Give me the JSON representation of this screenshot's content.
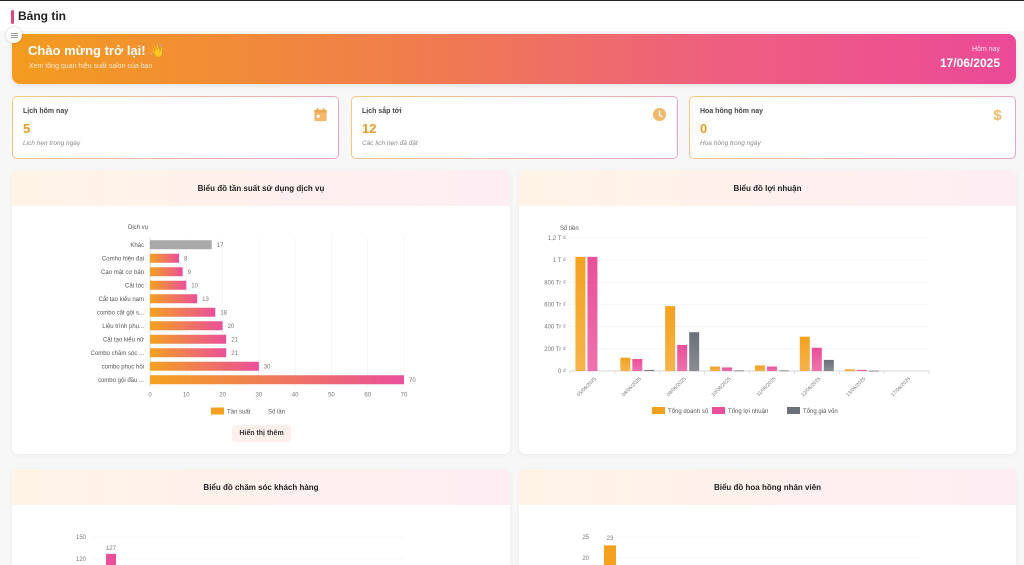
{
  "header": {
    "title": "Bảng tin",
    "menu_icon": "list-icon"
  },
  "hero": {
    "welcome": "Chào mừng trở lại! 👋",
    "subtitle": "Xem tổng quan hiệu suất salon của bạn",
    "today_label": "Hôm nay",
    "today_date": "17/06/2025"
  },
  "stats": [
    {
      "label": "Lịch hôm nay",
      "value": "5",
      "desc": "Lịch hẹn trong ngày",
      "icon": "calendar-icon"
    },
    {
      "label": "Lịch sắp tới",
      "value": "12",
      "desc": "Các lịch hẹn đã đặt",
      "icon": "clock-icon"
    },
    {
      "label": "Hoa hồng hôm nay",
      "value": "0",
      "desc": "Hoa hồng trong ngày",
      "icon": "dollar-icon"
    }
  ],
  "colors": {
    "orange": "#f4a11f",
    "pink": "#ea4f9a",
    "gray_bar": "#a9a9a9",
    "cost": "#6b7079",
    "value_text": "#e89b2b"
  },
  "panels": {
    "service_title": "Biểu đồ tần suất sử dụng dịch vụ",
    "profit_title": "Biểu đồ lợi nhuận",
    "care_title": "Biểu đồ chăm sóc khách hàng",
    "commission_title": "Biểu đồ hoa hồng nhân viên",
    "show_more": "Hiển thị thêm"
  },
  "chart_data": [
    {
      "type": "bar",
      "orientation": "horizontal",
      "title": "Biểu đồ tần suất sử dụng dịch vụ",
      "ylabel": "Dịch vụ",
      "xlabel": "Số lần",
      "categories": [
        "Khác",
        "Comho hiện đại",
        "Cạo mặt cơ bản",
        "Cắt tóc",
        "Cắt tạo kiểu nam",
        "combo cắt gội s...",
        "Liệu trình phụ...",
        "Cắt tạo kiểu nữ",
        "Combo chăm sóc ...",
        "combo phục hồi",
        "combo gội đầu ..."
      ],
      "values": [
        17,
        8,
        9,
        10,
        13,
        18,
        20,
        21,
        21,
        30,
        70
      ],
      "xlim": [
        0,
        70
      ],
      "xticks": [
        0,
        10,
        20,
        30,
        40,
        50,
        60,
        70
      ],
      "legend": [
        "Tần suất",
        "Số lần"
      ],
      "legend_position": "bottom",
      "grid": true
    },
    {
      "type": "bar",
      "title": "Biểu đồ lợi nhuận",
      "ylabel": "Số tiền",
      "categories": [
        "05/06/2025",
        "08/06/2025",
        "09/06/2025",
        "10/06/2025",
        "11/06/2025",
        "12/06/2025",
        "13/06/2025",
        "17/06/2025"
      ],
      "series": [
        {
          "name": "Tổng doanh số",
          "color": "#f4a11f",
          "values": [
            1030000000,
            120000000,
            585000000,
            40000000,
            50000000,
            310000000,
            15000000,
            0
          ]
        },
        {
          "name": "Tổng lợi nhuận",
          "color": "#ea4f9a",
          "values": [
            1030000000,
            108000000,
            235000000,
            32000000,
            40000000,
            210000000,
            10000000,
            0
          ]
        },
        {
          "name": "Tổng giá vốn",
          "color": "#6b7079",
          "values": [
            0,
            10000000,
            350000000,
            5000000,
            5000000,
            100000000,
            3000000,
            0
          ]
        }
      ],
      "yticks": [
        "0 ₫",
        "200 Tr ₫",
        "400 Tr ₫",
        "600 Tr ₫",
        "800 Tr ₫",
        "1 T ₫",
        "1,2 T ₫"
      ],
      "ylim": [
        0,
        1200000000
      ],
      "legend_position": "bottom",
      "grid": true
    },
    {
      "type": "bar",
      "title": "Biểu đồ chăm sóc khách hàng",
      "yticks": [
        120,
        150
      ],
      "ylim": [
        0,
        150
      ],
      "visible_values": [
        127
      ],
      "grid": true
    },
    {
      "type": "bar",
      "title": "Biểu đồ hoa hồng nhân viên",
      "yticks": [
        20,
        25
      ],
      "ylim": [
        0,
        25
      ],
      "visible_values": [
        23
      ],
      "grid": true
    }
  ]
}
